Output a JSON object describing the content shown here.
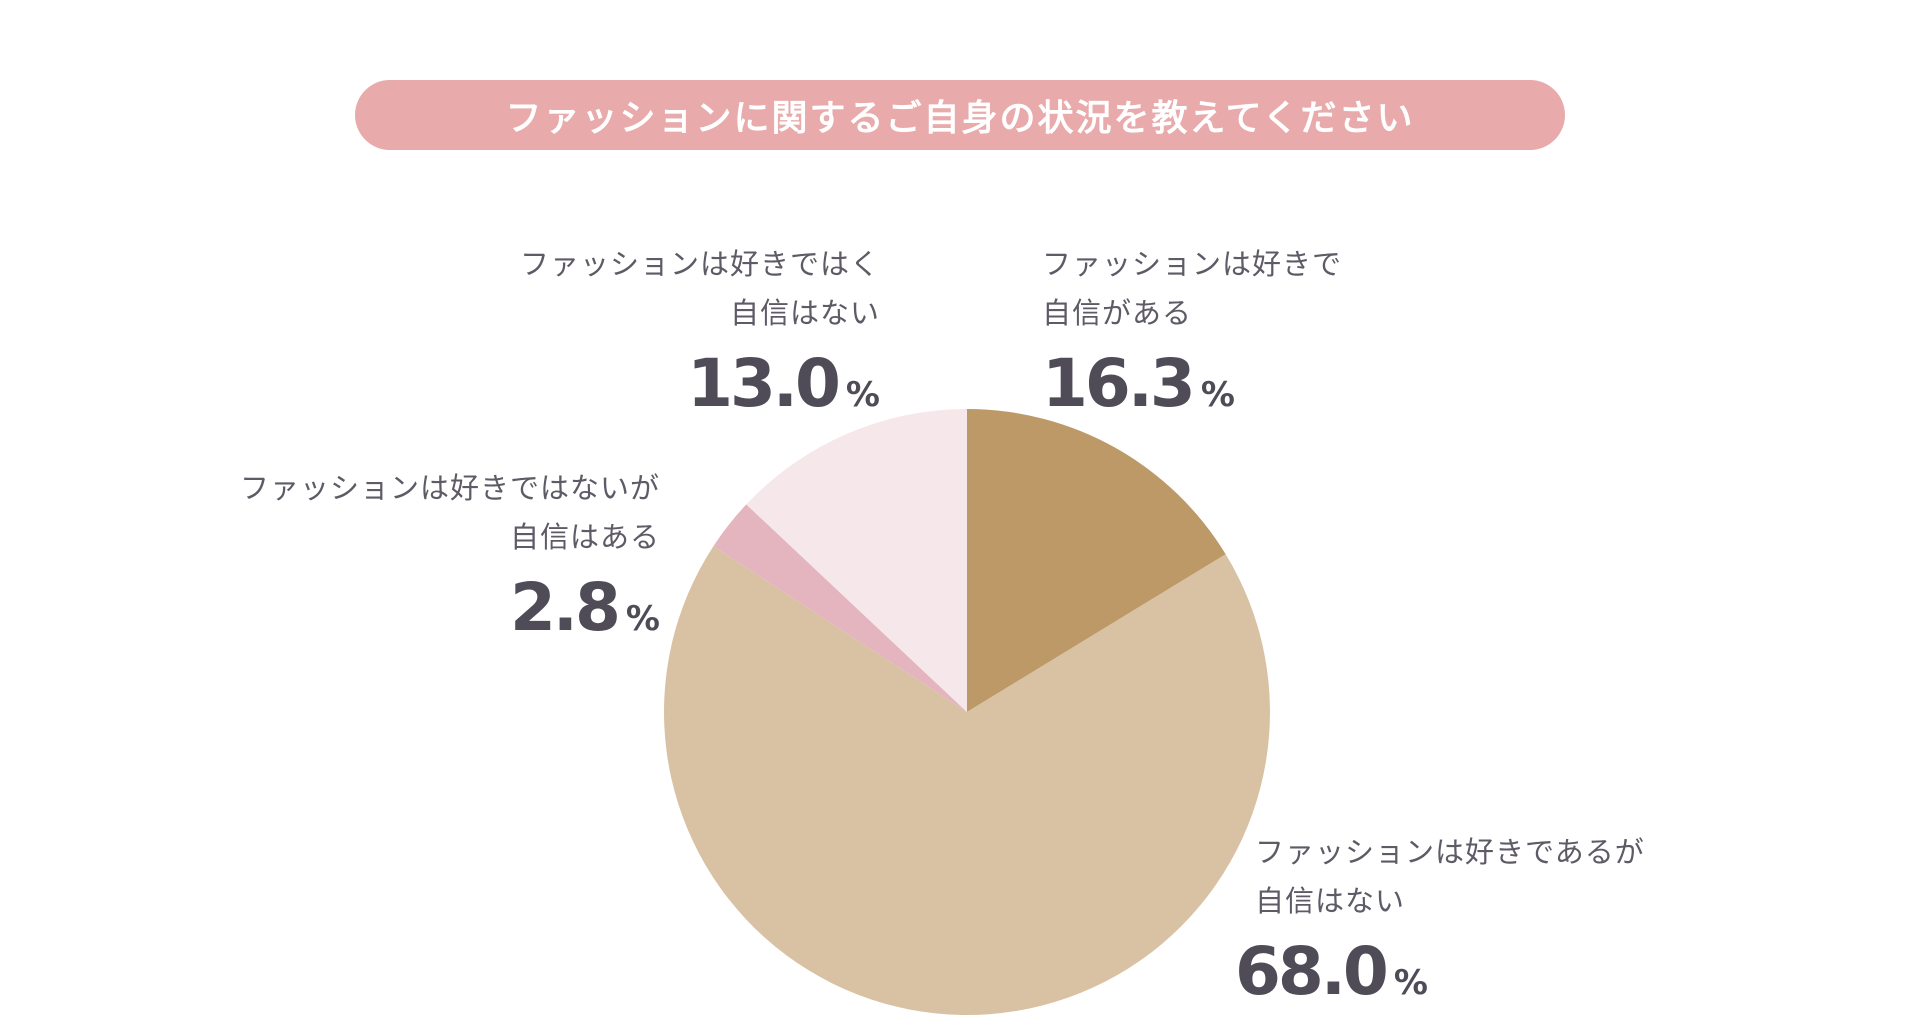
{
  "header": {
    "title": "ファッションに関するご自身の状況を教えてください",
    "pill_color": "#e8aaaa"
  },
  "chart_data": {
    "type": "pie",
    "unit": "%",
    "start_angle_deg": 0,
    "direction": "clockwise",
    "slices": [
      {
        "label_lines": [
          "ファッションは好きで",
          "自信がある"
        ],
        "value": 16.3,
        "value_text": "16.3",
        "color": "#bd9968"
      },
      {
        "label_lines": [
          "ファッションは好きであるが",
          "自信はない"
        ],
        "value": 68.0,
        "value_text": "68.0",
        "color": "#d8c2a3"
      },
      {
        "label_lines": [
          "ファッションは好きではないが",
          "自信はある"
        ],
        "value": 2.8,
        "value_text": "2.8",
        "color": "#e4b5bf"
      },
      {
        "label_lines": [
          "ファッションは好きではく",
          "自信はない"
        ],
        "value": 13.0,
        "value_text": "13.0",
        "color": "#f5e7ea"
      }
    ]
  }
}
